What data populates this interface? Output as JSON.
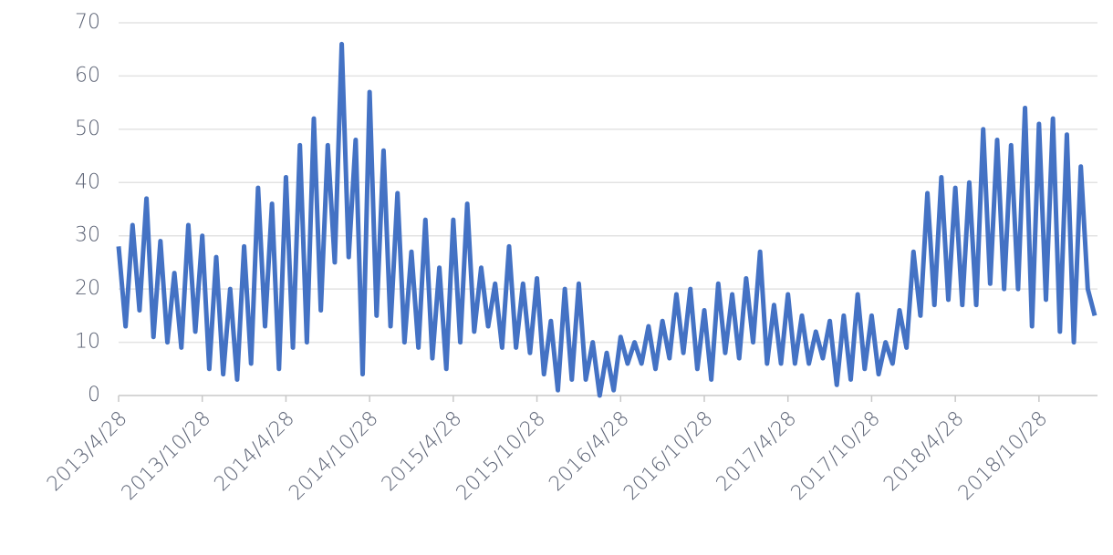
{
  "chart_data": {
    "type": "line",
    "x": [
      "2013/4/28",
      "2013/5/13",
      "2013/5/28",
      "2013/6/13",
      "2013/6/28",
      "2013/7/13",
      "2013/7/28",
      "2013/8/13",
      "2013/8/28",
      "2013/9/13",
      "2013/9/28",
      "2013/10/13",
      "2013/10/28",
      "2013/11/13",
      "2013/11/28",
      "2013/12/13",
      "2013/12/28",
      "2014/1/13",
      "2014/1/28",
      "2014/2/13",
      "2014/2/28",
      "2014/3/13",
      "2014/3/28",
      "2014/4/13",
      "2014/4/28",
      "2014/5/13",
      "2014/5/28",
      "2014/6/13",
      "2014/6/28",
      "2014/7/13",
      "2014/7/28",
      "2014/8/13",
      "2014/8/28",
      "2014/9/13",
      "2014/9/28",
      "2014/10/13",
      "2014/10/28",
      "2014/11/13",
      "2014/11/28",
      "2014/12/13",
      "2014/12/28",
      "2015/1/13",
      "2015/1/28",
      "2015/2/13",
      "2015/2/28",
      "2015/3/13",
      "2015/3/28",
      "2015/4/13",
      "2015/4/28",
      "2015/5/13",
      "2015/5/28",
      "2015/6/13",
      "2015/6/28",
      "2015/7/13",
      "2015/7/28",
      "2015/8/13",
      "2015/8/28",
      "2015/9/13",
      "2015/9/28",
      "2015/10/13",
      "2015/10/28",
      "2015/11/13",
      "2015/11/28",
      "2015/12/13",
      "2015/12/28",
      "2016/1/13",
      "2016/1/28",
      "2016/2/13",
      "2016/2/28",
      "2016/3/13",
      "2016/3/28",
      "2016/4/13",
      "2016/4/28",
      "2016/5/13",
      "2016/5/28",
      "2016/6/13",
      "2016/6/28",
      "2016/7/13",
      "2016/7/28",
      "2016/8/13",
      "2016/8/28",
      "2016/9/13",
      "2016/9/28",
      "2016/10/13",
      "2016/10/28",
      "2016/11/13",
      "2016/11/28",
      "2016/12/13",
      "2016/12/28",
      "2017/1/13",
      "2017/1/28",
      "2017/2/13",
      "2017/2/28",
      "2017/3/13",
      "2017/3/28",
      "2017/4/13",
      "2017/4/28",
      "2017/5/13",
      "2017/5/28",
      "2017/6/13",
      "2017/6/28",
      "2017/7/13",
      "2017/7/28",
      "2017/8/13",
      "2017/8/28",
      "2017/9/13",
      "2017/9/28",
      "2017/10/13",
      "2017/10/28",
      "2017/11/13",
      "2017/11/28",
      "2017/12/13",
      "2017/12/28",
      "2018/1/13",
      "2018/1/28",
      "2018/2/13",
      "2018/2/28",
      "2018/3/13",
      "2018/3/28",
      "2018/4/13",
      "2018/4/28",
      "2018/5/13",
      "2018/5/28",
      "2018/6/13",
      "2018/6/28",
      "2018/7/13",
      "2018/7/28",
      "2018/8/13",
      "2018/8/28",
      "2018/9/13",
      "2018/9/28",
      "2018/10/13",
      "2018/10/28",
      "2018/11/13",
      "2018/11/28",
      "2018/12/13",
      "2018/12/28",
      "2019/1/13",
      "2019/1/28",
      "2019/2/13",
      "2019/2/28"
    ],
    "series": [
      {
        "color": "#4472c4",
        "values": [
          28,
          13,
          32,
          16,
          37,
          11,
          29,
          10,
          23,
          9,
          32,
          12,
          30,
          5,
          26,
          4,
          20,
          3,
          28,
          6,
          39,
          13,
          36,
          5,
          41,
          9,
          47,
          10,
          52,
          16,
          47,
          25,
          66,
          26,
          48,
          4,
          57,
          15,
          46,
          13,
          38,
          10,
          27,
          9,
          33,
          7,
          24,
          5,
          33,
          10,
          36,
          12,
          24,
          13,
          21,
          9,
          28,
          9,
          21,
          8,
          22,
          4,
          14,
          1,
          20,
          3,
          21,
          3,
          10,
          0,
          8,
          1,
          11,
          6,
          10,
          6,
          13,
          5,
          14,
          7,
          19,
          8,
          20,
          5,
          16,
          3,
          21,
          8,
          19,
          7,
          22,
          10,
          27,
          6,
          17,
          6,
          19,
          6,
          15,
          6,
          12,
          7,
          14,
          2,
          15,
          3,
          19,
          5,
          15,
          4,
          10,
          6,
          16,
          9,
          27,
          15,
          38,
          17,
          41,
          18,
          39,
          17,
          40,
          17,
          50,
          21,
          48,
          20,
          47,
          20,
          54,
          13,
          51,
          18,
          52,
          12,
          49,
          10,
          43,
          20,
          15
        ]
      }
    ],
    "xticks": [
      "2013/4/28",
      "2013/10/28",
      "2014/4/28",
      "2014/10/28",
      "2015/4/28",
      "2015/10/28",
      "2016/4/28",
      "2016/10/28",
      "2017/4/28",
      "2017/10/28",
      "2018/4/28",
      "2018/10/28"
    ],
    "ylim": [
      0,
      70
    ],
    "yticks": [
      0,
      10,
      20,
      30,
      40,
      50,
      60,
      70
    ],
    "grid": true
  }
}
